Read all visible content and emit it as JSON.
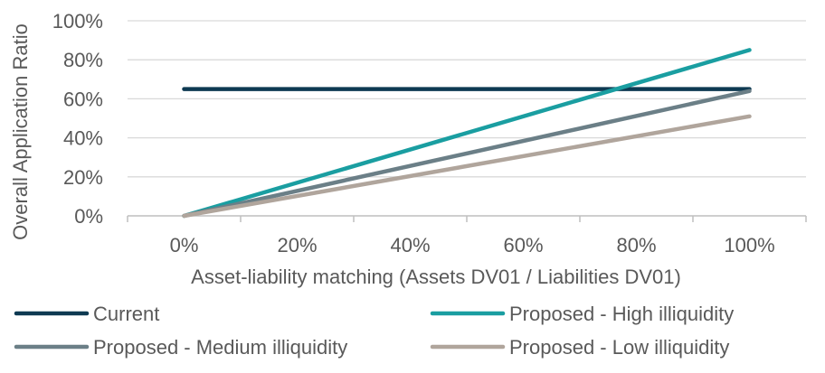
{
  "chart_data": {
    "type": "line",
    "title": "",
    "xlabel": "Asset-liability matching (Assets DV01 / Liabilities DV01)",
    "ylabel": "Overall Application Ratio",
    "x": [
      0,
      100
    ],
    "x_tick_labels": [
      "0%",
      "20%",
      "40%",
      "60%",
      "80%",
      "100%"
    ],
    "y_tick_labels": [
      "0%",
      "20%",
      "40%",
      "60%",
      "80%",
      "100%"
    ],
    "xlim": [
      -10,
      110
    ],
    "ylim": [
      0,
      100
    ],
    "grid": "horizontal",
    "legend_position": "bottom",
    "series": [
      {
        "name": "Current",
        "values": [
          65,
          65
        ],
        "color": "#0e3a52"
      },
      {
        "name": "Proposed - High illiquidity",
        "values": [
          0,
          85
        ],
        "color": "#1a9ea1"
      },
      {
        "name": "Proposed - Medium illiquidity",
        "values": [
          0,
          64
        ],
        "color": "#6b7f87"
      },
      {
        "name": "Proposed - Low illiquidity",
        "values": [
          0,
          51
        ],
        "color": "#b0a59c"
      }
    ]
  }
}
